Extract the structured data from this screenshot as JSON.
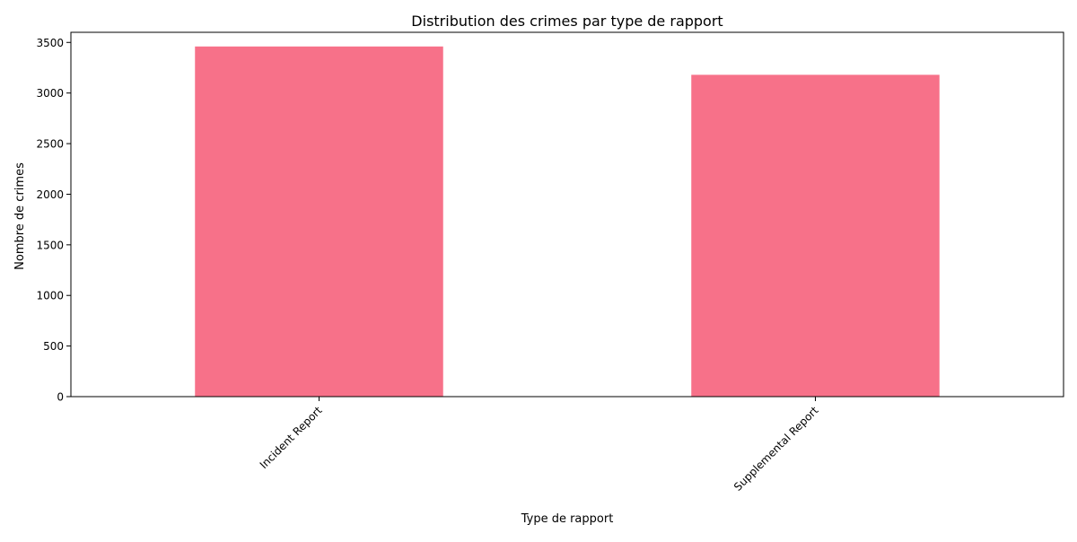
{
  "chart_data": {
    "type": "bar",
    "title": "Distribution des crimes par type de rapport",
    "xlabel": "Type de rapport",
    "ylabel": "Nombre de crimes",
    "categories": [
      "Incident Report",
      "Supplemental Report"
    ],
    "values": [
      3460,
      3180
    ],
    "ylim": [
      0,
      3600
    ],
    "yticks": [
      0,
      500,
      1000,
      1500,
      2000,
      2500,
      3000,
      3500
    ],
    "grid": false,
    "legend": "none",
    "bar_color": "#f77189",
    "xtick_rotation": 45
  }
}
